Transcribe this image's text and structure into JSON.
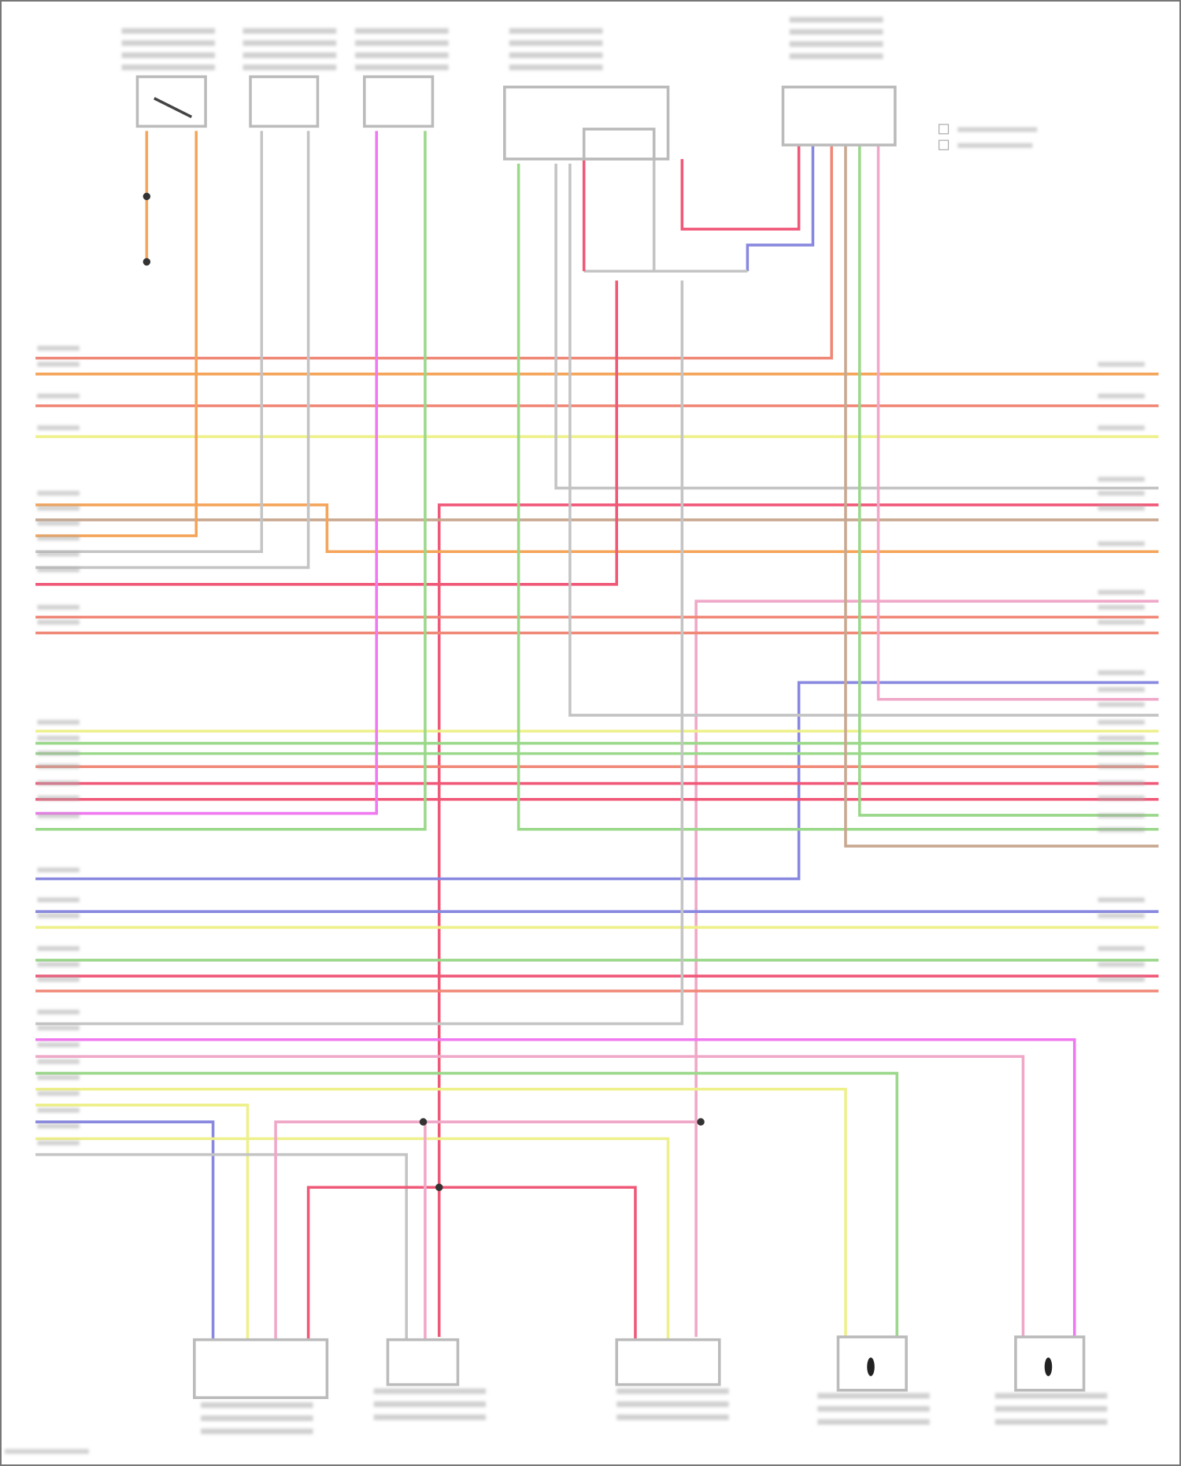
{
  "diagram": {
    "type": "wiring-diagram",
    "text_legible": false,
    "wire_colors": {
      "orange": "#f5a55a",
      "salmon": "#f08878",
      "yellow": "#eef08a",
      "red": "#f05878",
      "green": "#9ad88a",
      "gray": "#c4c4c4",
      "tan": "#c8a890",
      "magenta": "#f078f0",
      "blue": "#8888e0",
      "pink": "#f0a8c8",
      "black": "#333333"
    },
    "components_top": 5,
    "components_bottom": 5
  }
}
